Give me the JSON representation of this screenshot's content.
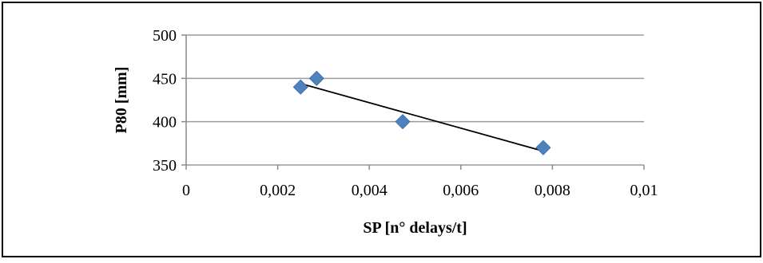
{
  "chart_data": {
    "type": "scatter",
    "title": "",
    "xlabel": "SP [n° delays/t]",
    "ylabel": "P80 [mm]",
    "xlim": [
      0,
      0.01
    ],
    "ylim": [
      350,
      500
    ],
    "x_ticks": [
      0,
      0.002,
      0.004,
      0.006,
      0.008,
      0.01
    ],
    "x_tick_labels": [
      "0",
      "0,002",
      "0,004",
      "0,006",
      "0,008",
      "0,01"
    ],
    "y_ticks": [
      350,
      400,
      450,
      500
    ],
    "y_tick_labels": [
      "350",
      "400",
      "450",
      "500"
    ],
    "grid": "horizontal",
    "legend": "none",
    "series": [
      {
        "marker": "diamond",
        "color": "#4f81bd",
        "points": [
          {
            "x": 0.0025,
            "y": 440
          },
          {
            "x": 0.00285,
            "y": 450
          },
          {
            "x": 0.00473,
            "y": 400
          },
          {
            "x": 0.0078,
            "y": 370
          }
        ]
      }
    ],
    "trendline": {
      "type": "linear",
      "color": "#000000",
      "x": [
        0.0025,
        0.0078
      ],
      "y": [
        444,
        366
      ]
    }
  }
}
